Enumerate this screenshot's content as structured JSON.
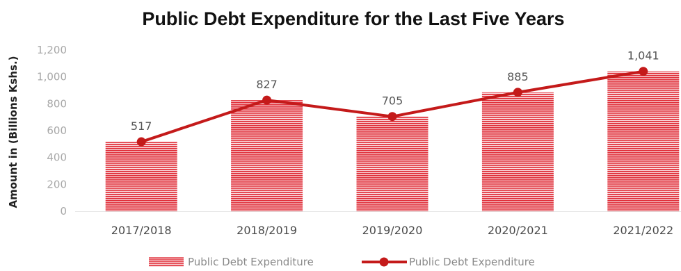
{
  "chart_data": {
    "type": "bar",
    "title": "Public Debt Expenditure for the Last Five Years",
    "ylabel": "Amount in (Billions Kshs.)",
    "xlabel": "",
    "ylim": [
      0,
      1200
    ],
    "yticks": [
      "0",
      "200",
      "400",
      "600",
      "800",
      "1,000",
      "1,200"
    ],
    "categories": [
      "2017/2018",
      "2018/2019",
      "2019/2020",
      "2020/2021",
      "2021/2022"
    ],
    "series": [
      {
        "name": "Public Debt Expenditure",
        "kind": "bar",
        "values": [
          517,
          827,
          705,
          885,
          1041
        ]
      },
      {
        "name": "Public Debt Expenditure",
        "kind": "line",
        "values": [
          517,
          827,
          705,
          885,
          1041
        ]
      }
    ],
    "data_labels": [
      "517",
      "827",
      "705",
      "885",
      "1,041"
    ],
    "legend_position": "bottom",
    "grid": false,
    "colors": {
      "bar": "#e0303a",
      "line": "#c41a1a"
    }
  }
}
